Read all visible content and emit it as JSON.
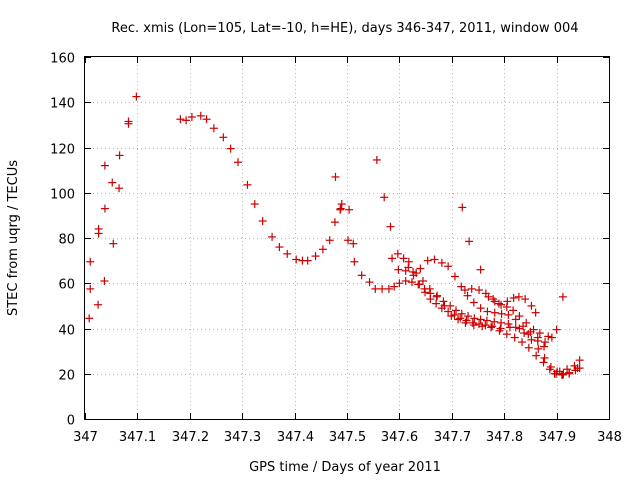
{
  "chart_data": {
    "type": "scatter",
    "title": "Rec. xmis (Lon=105, Lat=-10, h=HE), days 346-347, 2011, window 004",
    "xlabel": "GPS time / Days of year 2011",
    "ylabel": "STEC from uqrg / TECUs",
    "xlim": [
      347,
      348
    ],
    "ylim": [
      0,
      160
    ],
    "x_ticks": [
      347,
      347.1,
      347.2,
      347.3,
      347.4,
      347.5,
      347.6,
      347.7,
      347.8,
      347.9,
      348
    ],
    "x_tick_labels": [
      "347",
      "347.1",
      "347.2",
      "347.3",
      "347.4",
      "347.5",
      "347.6",
      "347.7",
      "347.8",
      "347.9",
      "348"
    ],
    "y_ticks": [
      0,
      20,
      40,
      60,
      80,
      100,
      120,
      140,
      160
    ],
    "y_tick_labels": [
      "0",
      "20",
      "40",
      "60",
      "80",
      "100",
      "120",
      "140",
      "160"
    ],
    "grid": true,
    "marker": "+",
    "color": "#cc0000",
    "points": [
      [
        347.008,
        44.5
      ],
      [
        347.01,
        57.5
      ],
      [
        347.01,
        69.5
      ],
      [
        347.025,
        50.5
      ],
      [
        347.026,
        82
      ],
      [
        347.026,
        84
      ],
      [
        347.037,
        61
      ],
      [
        347.038,
        93
      ],
      [
        347.038,
        112
      ],
      [
        347.052,
        104.5
      ],
      [
        347.054,
        77.5
      ],
      [
        347.065,
        102
      ],
      [
        347.066,
        116.5
      ],
      [
        347.083,
        130.5
      ],
      [
        347.083,
        131.5
      ],
      [
        347.098,
        142.5
      ],
      [
        347.182,
        132.5
      ],
      [
        347.193,
        132
      ],
      [
        347.204,
        133.5
      ],
      [
        347.221,
        134
      ],
      [
        347.232,
        132.5
      ],
      [
        347.246,
        128.5
      ],
      [
        347.264,
        124.5
      ],
      [
        347.278,
        119.5
      ],
      [
        347.292,
        113.5
      ],
      [
        347.31,
        103.5
      ],
      [
        347.324,
        95
      ],
      [
        347.339,
        87.5
      ],
      [
        347.357,
        80.5
      ],
      [
        347.371,
        76
      ],
      [
        347.386,
        73
      ],
      [
        347.403,
        70.5
      ],
      [
        347.415,
        70
      ],
      [
        347.425,
        70
      ],
      [
        347.44,
        72
      ],
      [
        347.454,
        75
      ],
      [
        347.467,
        79
      ],
      [
        347.477,
        87
      ],
      [
        347.487,
        92.5
      ],
      [
        347.49,
        95
      ],
      [
        347.502,
        79
      ],
      [
        347.512,
        77.5
      ],
      [
        347.514,
        69.5
      ],
      [
        347.528,
        63.5
      ],
      [
        347.543,
        60.5
      ],
      [
        347.478,
        107
      ],
      [
        347.488,
        93
      ],
      [
        347.504,
        92.5
      ],
      [
        347.557,
        114.5
      ],
      [
        347.571,
        98
      ],
      [
        347.583,
        85
      ],
      [
        347.72,
        93.5
      ],
      [
        347.733,
        78.5
      ],
      [
        347.755,
        66
      ],
      [
        347.912,
        54
      ],
      [
        347.554,
        57.5
      ],
      [
        347.567,
        57.5
      ],
      [
        347.58,
        57.5
      ],
      [
        347.59,
        58.5
      ],
      [
        347.6,
        60
      ],
      [
        347.612,
        61
      ],
      [
        347.624,
        60.5
      ],
      [
        347.636,
        59.5
      ],
      [
        347.648,
        57.5
      ],
      [
        347.659,
        55.5
      ],
      [
        347.671,
        54
      ],
      [
        347.684,
        52
      ],
      [
        347.697,
        50
      ],
      [
        347.708,
        48
      ],
      [
        347.719,
        46.5
      ],
      [
        347.731,
        45.5
      ],
      [
        347.743,
        44.5
      ],
      [
        347.755,
        44
      ],
      [
        347.767,
        43.5
      ],
      [
        347.781,
        43
      ],
      [
        347.794,
        42.5
      ],
      [
        347.808,
        42
      ],
      [
        347.822,
        40.5
      ],
      [
        347.838,
        38
      ],
      [
        347.852,
        35
      ],
      [
        347.865,
        31
      ],
      [
        347.877,
        27
      ],
      [
        347.889,
        23
      ],
      [
        347.901,
        21
      ],
      [
        347.913,
        20
      ],
      [
        347.586,
        71
      ],
      [
        347.597,
        73
      ],
      [
        347.608,
        71
      ],
      [
        347.617,
        67
      ],
      [
        347.627,
        63.5
      ],
      [
        347.638,
        59.5
      ],
      [
        347.649,
        56
      ],
      [
        347.659,
        53
      ],
      [
        347.67,
        51
      ],
      [
        347.681,
        49
      ],
      [
        347.693,
        47.5
      ],
      [
        347.705,
        46
      ],
      [
        347.716,
        44.5
      ],
      [
        347.728,
        43.5
      ],
      [
        347.74,
        42.5
      ],
      [
        347.752,
        42
      ],
      [
        347.764,
        41.5
      ],
      [
        347.777,
        41
      ],
      [
        347.791,
        39
      ],
      [
        347.805,
        37.5
      ],
      [
        347.82,
        36
      ],
      [
        347.834,
        34
      ],
      [
        347.847,
        31.5
      ],
      [
        347.861,
        28
      ],
      [
        347.875,
        25
      ],
      [
        347.887,
        22
      ],
      [
        347.899,
        20
      ],
      [
        347.912,
        19.5
      ],
      [
        347.924,
        20
      ],
      [
        347.936,
        21.5
      ],
      [
        347.598,
        66
      ],
      [
        347.612,
        65.5
      ],
      [
        347.626,
        65
      ],
      [
        347.64,
        66.5
      ],
      [
        347.654,
        70
      ],
      [
        347.667,
        70.5
      ],
      [
        347.681,
        69
      ],
      [
        347.693,
        67.5
      ],
      [
        347.706,
        63
      ],
      [
        347.718,
        58.5
      ],
      [
        347.73,
        54.5
      ],
      [
        347.742,
        51.5
      ],
      [
        347.755,
        49
      ],
      [
        347.768,
        47.5
      ],
      [
        347.782,
        47
      ],
      [
        347.795,
        46.5
      ],
      [
        347.808,
        46
      ],
      [
        347.822,
        44
      ],
      [
        347.836,
        41
      ],
      [
        347.85,
        38.5
      ],
      [
        347.864,
        36
      ],
      [
        347.878,
        34
      ],
      [
        347.891,
        36
      ],
      [
        347.9,
        39.5
      ],
      [
        347.618,
        69.5
      ],
      [
        347.632,
        64.5
      ],
      [
        347.645,
        61
      ],
      [
        347.658,
        57.5
      ],
      [
        347.672,
        54.5
      ],
      [
        347.686,
        50
      ],
      [
        347.699,
        45.5
      ],
      [
        347.712,
        44
      ],
      [
        347.726,
        42.5
      ],
      [
        347.742,
        41.5
      ],
      [
        347.758,
        41
      ],
      [
        347.775,
        40.5
      ],
      [
        347.793,
        40
      ],
      [
        347.811,
        40.5
      ],
      [
        347.829,
        40
      ],
      [
        347.846,
        37.5
      ],
      [
        347.864,
        34.5
      ],
      [
        347.876,
        32
      ],
      [
        347.896,
        20
      ],
      [
        347.91,
        19.5
      ],
      [
        347.924,
        20.5
      ],
      [
        347.94,
        22.5
      ],
      [
        347.944,
        26
      ],
      [
        347.725,
        57
      ],
      [
        347.738,
        57.5
      ],
      [
        347.752,
        57
      ],
      [
        347.765,
        55.5
      ],
      [
        347.779,
        53
      ],
      [
        347.79,
        51
      ],
      [
        347.805,
        49.5
      ],
      [
        347.817,
        48
      ],
      [
        347.829,
        45.5
      ],
      [
        347.842,
        42.5
      ],
      [
        347.856,
        39.5
      ],
      [
        347.868,
        38
      ],
      [
        347.884,
        36.5
      ],
      [
        347.906,
        21
      ],
      [
        347.92,
        22
      ],
      [
        347.934,
        23.5
      ],
      [
        347.944,
        22.5
      ],
      [
        347.77,
        54
      ],
      [
        347.782,
        52
      ],
      [
        347.794,
        50.5
      ],
      [
        347.806,
        52
      ],
      [
        347.818,
        53.5
      ],
      [
        347.828,
        54
      ],
      [
        347.84,
        53
      ],
      [
        347.852,
        50
      ],
      [
        347.86,
        47
      ]
    ]
  }
}
